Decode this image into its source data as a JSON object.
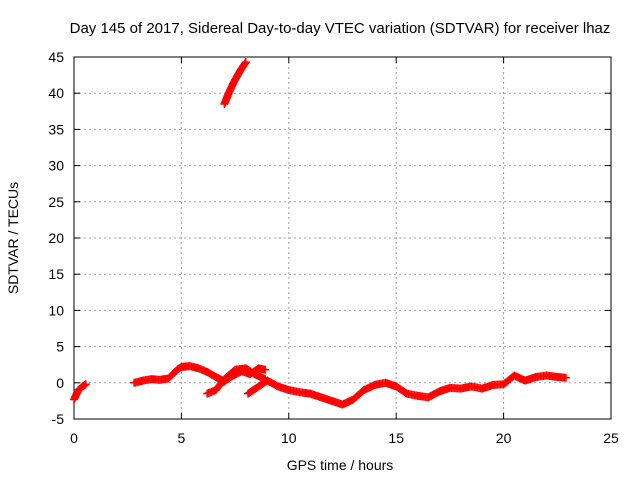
{
  "chart_data": {
    "type": "scatter",
    "title": "Day 145 of 2017, Sidereal Day-to-day VTEC variation (SDTVAR) for receiver lhaz",
    "xlabel": "GPS time / hours",
    "ylabel": "SDTVAR / TECUs",
    "xlim": [
      0,
      25
    ],
    "ylim": [
      -5,
      45
    ],
    "x_ticks": [
      "0",
      "5",
      "10",
      "15",
      "20",
      "25"
    ],
    "y_ticks": [
      "-5",
      "0",
      "5",
      "10",
      "15",
      "20",
      "25",
      "30",
      "35",
      "40",
      "45"
    ],
    "grid": true,
    "marker": "plus",
    "series": [
      {
        "name": "SDTVAR",
        "color": "#ff0000",
        "segments": [
          {
            "x": [
              0.0,
              0.2,
              0.4,
              0.55
            ],
            "y": [
              -2.3,
              -1.0,
              -0.5,
              -0.2
            ]
          },
          {
            "x": [
              2.8,
              3.2,
              3.6,
              4.0,
              4.4,
              4.8,
              5.0,
              5.4,
              5.8,
              6.2,
              6.6,
              7.0,
              7.4,
              7.8,
              8.2,
              8.6,
              8.9
            ],
            "y": [
              0.0,
              0.3,
              0.5,
              0.4,
              0.6,
              1.8,
              2.2,
              2.3,
              2.0,
              1.5,
              0.8,
              0.2,
              1.0,
              1.6,
              1.2,
              2.0,
              1.8
            ]
          },
          {
            "x": [
              6.2,
              6.6,
              7.0,
              7.5,
              8.0,
              8.4,
              8.9
            ],
            "y": [
              -1.5,
              -1.0,
              0.5,
              1.8,
              2.0,
              1.2,
              0.5
            ]
          },
          {
            "x": [
              8.1,
              8.6,
              9.0,
              9.5,
              10.0,
              10.5,
              11.0,
              11.5,
              12.0,
              12.5,
              13.0,
              13.5,
              14.0,
              14.5,
              15.0,
              15.5,
              16.0,
              16.5,
              17.0,
              17.5,
              18.0,
              18.5,
              19.0,
              19.5,
              20.0,
              20.5,
              21.0,
              21.5,
              22.0,
              22.5,
              22.9
            ],
            "y": [
              -1.5,
              -0.5,
              0.3,
              -0.5,
              -1.0,
              -1.3,
              -1.5,
              -2.0,
              -2.5,
              -3.0,
              -2.3,
              -1.0,
              -0.3,
              0.0,
              -0.5,
              -1.5,
              -1.8,
              -2.0,
              -1.2,
              -0.7,
              -0.8,
              -0.5,
              -0.8,
              -0.3,
              -0.2,
              1.0,
              0.3,
              0.8,
              1.0,
              0.8,
              0.7
            ]
          },
          {
            "x": [
              7.0,
              7.2,
              7.4,
              7.6,
              7.8,
              8.0
            ],
            "y": [
              38.5,
              40.0,
              41.3,
              42.4,
              43.4,
              44.3
            ]
          }
        ]
      }
    ]
  }
}
